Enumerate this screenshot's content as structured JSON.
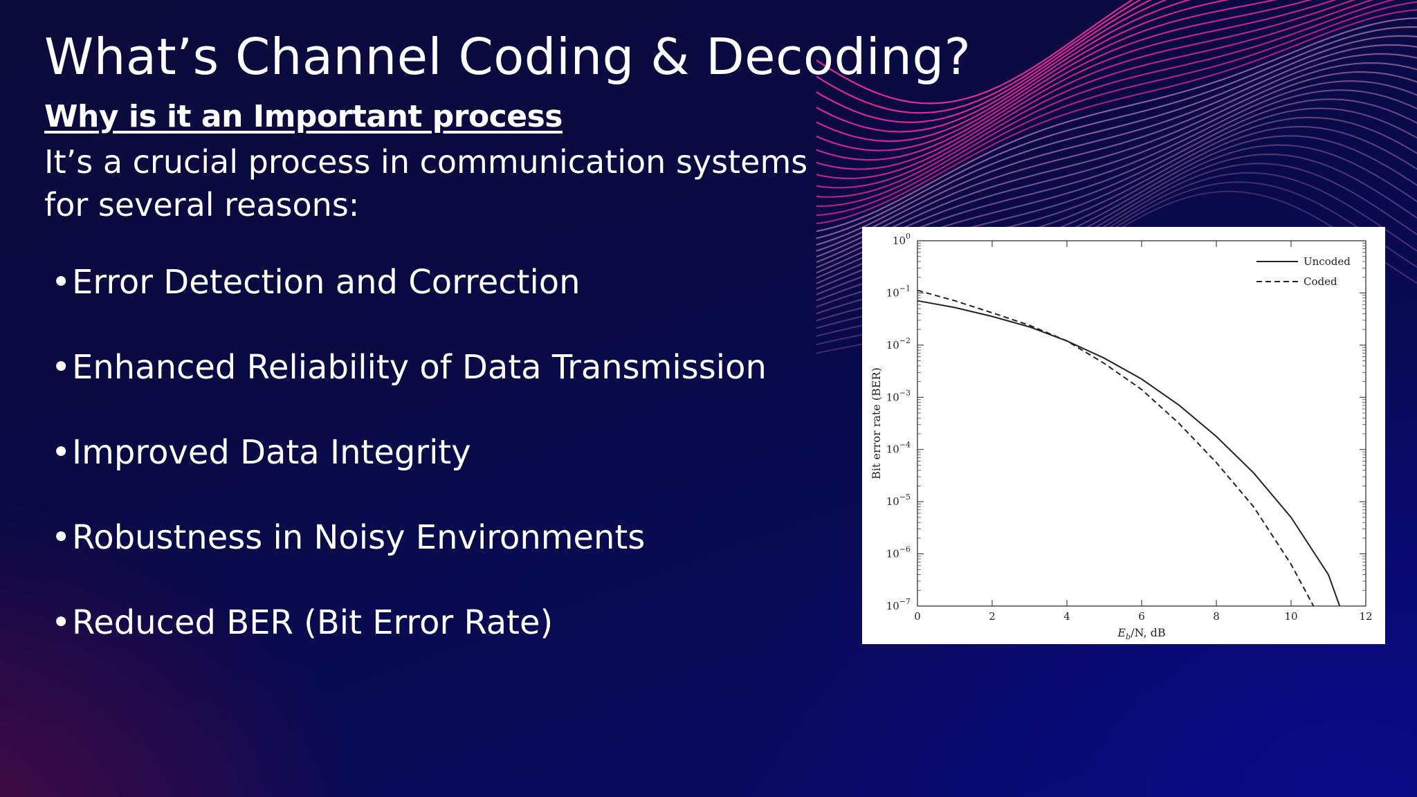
{
  "slide": {
    "title": "What’s Channel Coding & Decoding?",
    "subtitle": "Why is it an Important process",
    "intro_line1": "It’s a crucial process in communication systems",
    "intro_line2": "for several reasons:",
    "bullets": [
      "Error Detection and Correction",
      "Enhanced Reliability of Data Transmission",
      "Improved Data Integrity",
      "Robustness in Noisy Environments",
      "Reduced BER (Bit Error Rate)"
    ],
    "bullet_glyph": "•"
  },
  "colors": {
    "wave_pink": "#ff2d9a",
    "wave_light": "#d98fc4",
    "chart_line": "#222222"
  },
  "chart_data": {
    "type": "line",
    "xlabel_main": "E",
    "xlabel_sub": "b",
    "xlabel_rest": "/N, dB",
    "ylabel": "Bit error rate (BER)",
    "xlim": [
      0,
      12
    ],
    "ylim_exp": [
      -7,
      0
    ],
    "log_y": true,
    "x_ticks": [
      "0",
      "2",
      "4",
      "6",
      "8",
      "10",
      "12"
    ],
    "y_ticks": [
      "10",
      "10",
      "10",
      "10",
      "10",
      "10",
      "10",
      "10"
    ],
    "y_tick_exps": [
      "0",
      "−1",
      "−2",
      "−3",
      "−4",
      "−5",
      "−6",
      "−7"
    ],
    "legend_position": "top-right",
    "series": [
      {
        "name": "Uncoded",
        "dash": false,
        "x": [
          0,
          1,
          2,
          3,
          4,
          5,
          6,
          7,
          8,
          9,
          10,
          11,
          11.3
        ],
        "y_exp": [
          -1.15,
          -1.28,
          -1.45,
          -1.65,
          -1.92,
          -2.25,
          -2.65,
          -3.15,
          -3.75,
          -4.45,
          -5.3,
          -6.4,
          -7.0
        ]
      },
      {
        "name": "Coded",
        "dash": true,
        "x": [
          0,
          1,
          2,
          3,
          4,
          5,
          6,
          7,
          8,
          9,
          10,
          10.6
        ],
        "y_exp": [
          -0.95,
          -1.15,
          -1.38,
          -1.62,
          -1.92,
          -2.35,
          -2.85,
          -3.5,
          -4.25,
          -5.1,
          -6.2,
          -7.0
        ]
      }
    ]
  }
}
